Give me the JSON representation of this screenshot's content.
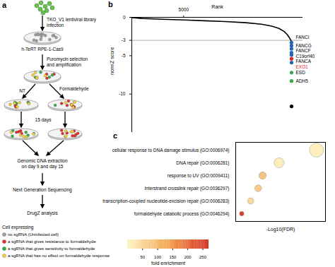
{
  "diagram": {
    "label": "a",
    "infection": [
      "TKO_V1 lentiviral library",
      "infection"
    ],
    "cell_line": "h-TeRT RPE-1-Cas9",
    "selection": [
      "Puromycin selection",
      "and amplification"
    ],
    "branches": [
      "NT",
      "Formaldehyde"
    ],
    "duration": "15 days",
    "extraction": [
      "Genomic DNA extraction",
      "on day 9 and day 15"
    ],
    "sequencing": "Next Generation Sequencing",
    "analysis": "DrugZ analysis",
    "legend": {
      "title": "Cell expressing",
      "items": [
        {
          "label": "no sgRNA (Uninfected cell)",
          "color": "#9e9e9e"
        },
        {
          "label": "a sgRNA that gives resistance to formaldehyde",
          "color": "#e0302a"
        },
        {
          "label": "a sgRNA that gives sensitivity to formaldehyde",
          "color": "#3aa84a"
        },
        {
          "label": "a sgRNA that has no effect on formaldehyde response",
          "color": "#f2d13a"
        }
      ]
    }
  },
  "chart_data": [
    {
      "type": "line",
      "label": "b",
      "x_label": "Rank",
      "y_label": "normZ score",
      "x": [
        0,
        1000,
        3000,
        5000,
        7000,
        9000,
        11000,
        12500,
        13500,
        14200,
        14700,
        15000,
        15200,
        15390
      ],
      "values": [
        -0.05,
        -0.15,
        -0.25,
        -0.35,
        -0.45,
        -0.55,
        -0.7,
        -0.9,
        -1.15,
        -1.45,
        -1.85,
        -2.25,
        -2.65,
        -3.1
      ],
      "color": "#000000",
      "xlim": [
        0,
        16500
      ],
      "xticks": [
        5000
      ],
      "ylim": [
        -15,
        0
      ],
      "yticks": [
        0,
        -3,
        -5,
        -10
      ],
      "threshold": -3,
      "points": [
        {
          "name": "FANCI",
          "rank": 15402,
          "value": -3.3,
          "color": "#1f66b3"
        },
        {
          "name": "FANCG",
          "rank": 15403,
          "value": -3.7,
          "color": "#1f66b3"
        },
        {
          "name": "FANCF",
          "rank": 15404,
          "value": -4.1,
          "color": "#1f66b3"
        },
        {
          "name": "C19orf40",
          "rank": 15405,
          "value": -4.6,
          "color": "#1f66b3"
        },
        {
          "name": "FANCA",
          "rank": 15406,
          "value": -4.9,
          "color": "#1f66b3"
        },
        {
          "name": "EXO1",
          "rank": 15407,
          "value": -5.4,
          "color": "#e3261f",
          "label_color": "#e3261f"
        },
        {
          "name": null,
          "rank": 15408,
          "value": -5.9,
          "color": "#1f66b3"
        },
        {
          "name": "ESD",
          "rank": 15409,
          "value": -7.2,
          "color": "#3aa84a"
        },
        {
          "name": "ADH5",
          "rank": 15410,
          "value": -8.3,
          "color": "#3aa84a"
        },
        {
          "name": null,
          "rank": 15411,
          "value": -11.6,
          "color": "#000000"
        }
      ]
    },
    {
      "type": "scatter",
      "label": "c",
      "x_label": "-Log10(FDR)",
      "categories": [
        "cellular response to DNA damage stimulus (GO:0006974)",
        "DNA repair (GO:0006281)",
        "response to UV (GO:0009411)",
        "Interstrand crosslink repair (GO:0036297)",
        "transcription-coupled nucleotide-excision repair (GO:0006283)",
        "formaldehyde catabolic process (GO:0046294)"
      ],
      "values": [
        2.7,
        1.45,
        0.9,
        0.75,
        0.5,
        0.2
      ],
      "sizes": [
        30,
        15,
        8,
        7,
        6,
        3
      ],
      "fold_enrichment": [
        10,
        12,
        80,
        70,
        45,
        250
      ],
      "colorbar": {
        "label": "fold enrichment",
        "range": [
          0,
          270
        ],
        "ticks": [
          50,
          100,
          150,
          200,
          250
        ]
      },
      "xlim": [
        0,
        3
      ],
      "tick_labels": "y"
    }
  ]
}
